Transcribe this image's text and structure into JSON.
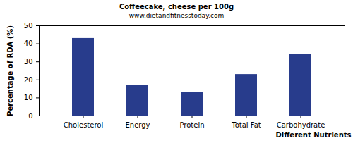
{
  "chart_data": {
    "type": "bar",
    "title": "Coffeecake, cheese per 100g",
    "subtitle": "www.dietandfitnesstoday.com",
    "x_label": "Different Nutrients",
    "y_label": "Percentage of RDA (%)",
    "categories": [
      "Cholesterol",
      "Energy",
      "Protein",
      "Total Fat",
      "Carbohydrate"
    ],
    "values": [
      43,
      17,
      13,
      23,
      34
    ],
    "color": "#283c8c",
    "ylim": [
      0,
      50
    ],
    "yticks": [
      0,
      10,
      20,
      30,
      40,
      50
    ],
    "grid": false
  }
}
